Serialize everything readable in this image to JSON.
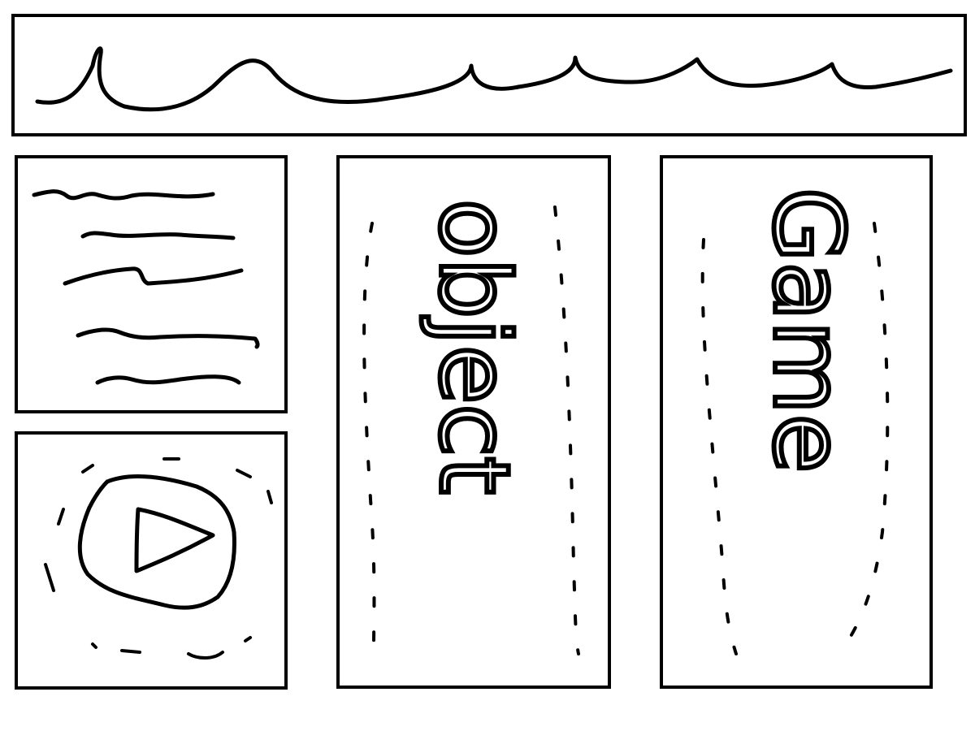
{
  "panels": {
    "header": {
      "label": ""
    },
    "text_block": {
      "label": ""
    },
    "video": {
      "label": ""
    },
    "object": {
      "label": "object"
    },
    "game": {
      "label": "Game"
    }
  },
  "colors": {
    "ink": "#000000",
    "paper": "#ffffff"
  },
  "icons": {
    "video": "play-icon"
  }
}
